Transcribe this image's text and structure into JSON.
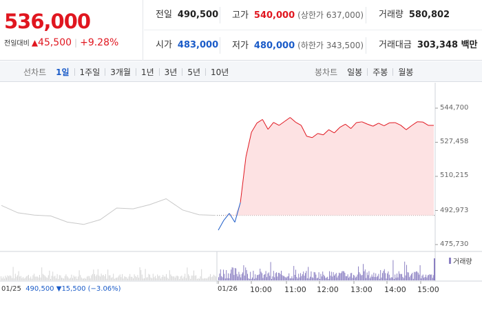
{
  "quote": {
    "price": "536,000",
    "change_label": "전일대비",
    "change_icon": "triangle-up-icon",
    "change_value": "45,500",
    "change_pct": "+9.28%",
    "stats": {
      "prev_close": {
        "label": "전일",
        "value": "490,500"
      },
      "high": {
        "label": "고가",
        "value": "540,000",
        "note": "(상한가 637,000)"
      },
      "volume": {
        "label": "거래량",
        "value": "580,802"
      },
      "open": {
        "label": "시가",
        "value": "483,000"
      },
      "low": {
        "label": "저가",
        "value": "480,000",
        "note": "(하한가 343,500)"
      },
      "amount": {
        "label": "거래대금",
        "value": "303,348 백만"
      }
    },
    "colors": {
      "up": "#e0161f",
      "down": "#1a5bc8"
    }
  },
  "toolbar": {
    "line_chart_title": "선차트",
    "line_periods": [
      "1일",
      "1주일",
      "3개월",
      "1년",
      "3년",
      "5년",
      "10년"
    ],
    "active_period": "1일",
    "candle_title": "봉차트",
    "candle_periods": [
      "일봉",
      "주봉",
      "월봉"
    ]
  },
  "chart_data": {
    "type": "line",
    "title": "",
    "ylabel": "",
    "yticks": [
      "544,700",
      "527,458",
      "510,215",
      "492,973",
      "475,730"
    ],
    "ylim": [
      475730,
      544700
    ],
    "baseline": 490500,
    "xticks": [
      "01/26",
      "10:00",
      "11:00",
      "12:00",
      "13:00",
      "14:00",
      "15:00"
    ],
    "prev_day_label": "01/25",
    "prev_day_close": "490,500",
    "prev_day_change_icon": "triangle-down-icon",
    "prev_day_change": "15,500",
    "prev_day_pct": "(−3.06%)",
    "series": [
      {
        "x": [
          "01/25 09:00",
          "01/25 09:30",
          "01/25 10:00",
          "01/25 10:30",
          "01/25 11:00",
          "01/25 11:30",
          "01/25 12:00",
          "01/25 12:30",
          "01/25 13:00",
          "01/25 13:30",
          "01/25 14:00",
          "01/25 14:30",
          "01/25 15:00",
          "01/25 15:30"
        ],
        "values": [
          495500,
          491800,
          490600,
          490200,
          487100,
          485900,
          488300,
          494200,
          493800,
          495900,
          498900,
          493200,
          490800,
          490500
        ]
      },
      {
        "x": [
          "09:00",
          "09:05",
          "09:10",
          "09:20",
          "09:30",
          "09:40",
          "09:50",
          "10:00",
          "10:10",
          "10:20",
          "10:30",
          "10:40",
          "10:50",
          "11:00",
          "11:10",
          "11:20",
          "11:30",
          "11:40",
          "11:50",
          "12:00",
          "12:10",
          "12:20",
          "12:30",
          "12:40",
          "12:50",
          "13:00",
          "13:10",
          "13:20",
          "13:30",
          "13:40",
          "13:50",
          "14:00",
          "14:10",
          "14:20",
          "14:30",
          "14:40",
          "14:50",
          "15:00",
          "15:10",
          "15:20"
        ],
        "values": [
          483000,
          488000,
          491500,
          487000,
          497000,
          520000,
          532500,
          537200,
          539000,
          534000,
          537500,
          536000,
          538000,
          540000,
          537600,
          536000,
          530500,
          529800,
          531900,
          531200,
          533800,
          532200,
          535000,
          536600,
          534400,
          537400,
          537800,
          536600,
          535600,
          537100,
          535800,
          537300,
          537400,
          536100,
          533800,
          535900,
          537800,
          537700,
          536000,
          536000
        ]
      }
    ],
    "volume_label": "거래량"
  }
}
